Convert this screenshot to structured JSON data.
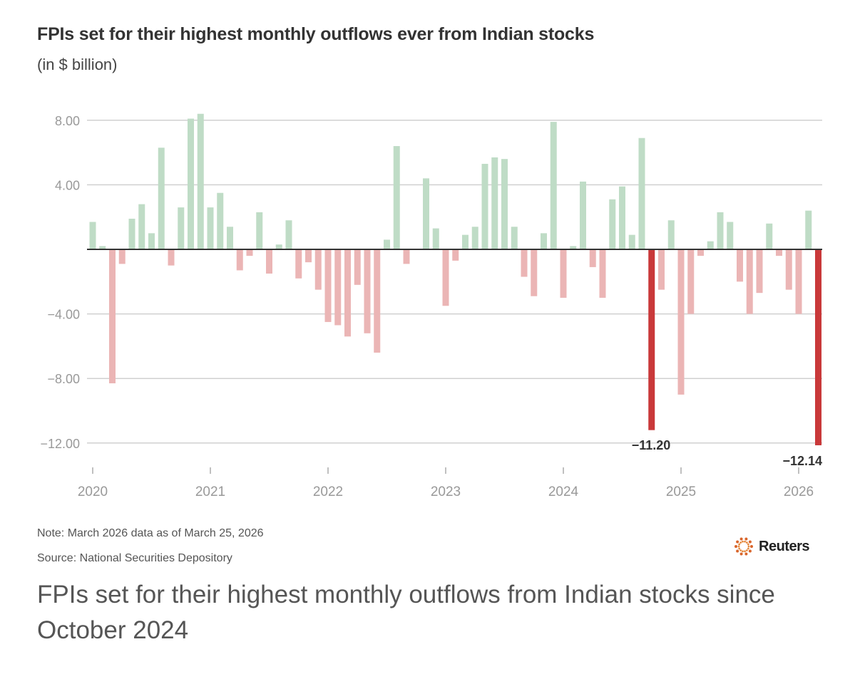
{
  "header": {
    "title": "FPIs set for their highest monthly outflows ever from Indian stocks",
    "subtitle": "(in $ billion)"
  },
  "chart_data": {
    "type": "bar",
    "title": "FPIs set for their highest monthly outflows ever from Indian stocks",
    "subtitle": "(in $ billion)",
    "xlabel": "",
    "ylabel": "$ billion",
    "ylim": [
      -13.5,
      9.5
    ],
    "yticks": [
      8,
      4,
      -4,
      -8,
      -12
    ],
    "ytick_labels": [
      "8.00",
      "4.00",
      "−4.00",
      "−8.00",
      "−12.00"
    ],
    "xticks": [
      "2020",
      "2021",
      "2022",
      "2023",
      "2024",
      "2025",
      "2026"
    ],
    "grid": true,
    "colors": {
      "positive": "#bfdcc6",
      "negative": "#ebb5b5",
      "highlight": "#c9393a",
      "zero_line": "#333333",
      "grid": "#d0d0d0"
    },
    "start": "2020-01",
    "values": [
      1.7,
      0.2,
      -8.3,
      -0.9,
      1.9,
      2.8,
      1.0,
      6.3,
      -1.0,
      2.6,
      8.1,
      8.4,
      2.6,
      3.5,
      1.4,
      -1.3,
      -0.4,
      2.3,
      -1.5,
      0.3,
      1.8,
      -1.8,
      -0.8,
      -2.5,
      -4.5,
      -4.7,
      -5.4,
      -2.2,
      -5.2,
      -6.4,
      0.6,
      6.4,
      -0.9,
      0.0,
      4.4,
      1.3,
      -3.5,
      -0.7,
      0.9,
      1.4,
      5.3,
      5.7,
      5.6,
      1.4,
      -1.7,
      -2.9,
      1.0,
      7.9,
      -3.0,
      0.2,
      4.2,
      -1.1,
      -3.0,
      3.1,
      3.9,
      0.9,
      6.9,
      -11.2,
      -2.5,
      1.8,
      -9.0,
      -4.0,
      -0.4,
      0.5,
      2.3,
      1.7,
      -2.0,
      -4.0,
      -2.7,
      1.6,
      -0.4,
      -2.5,
      -4.0,
      2.4,
      -12.14
    ],
    "highlights": [
      {
        "month": "2024-10",
        "value": -11.2,
        "label": "−11.20"
      },
      {
        "month": "2026-03",
        "value": -12.14,
        "label": "−12.14"
      }
    ]
  },
  "footer": {
    "note": "Note: March 2026 data as of March 25, 2026",
    "source": "Source: National Securities Depository",
    "logo": "Reuters",
    "caption": "FPIs set for their highest monthly outflows from Indian stocks since October 2024"
  }
}
